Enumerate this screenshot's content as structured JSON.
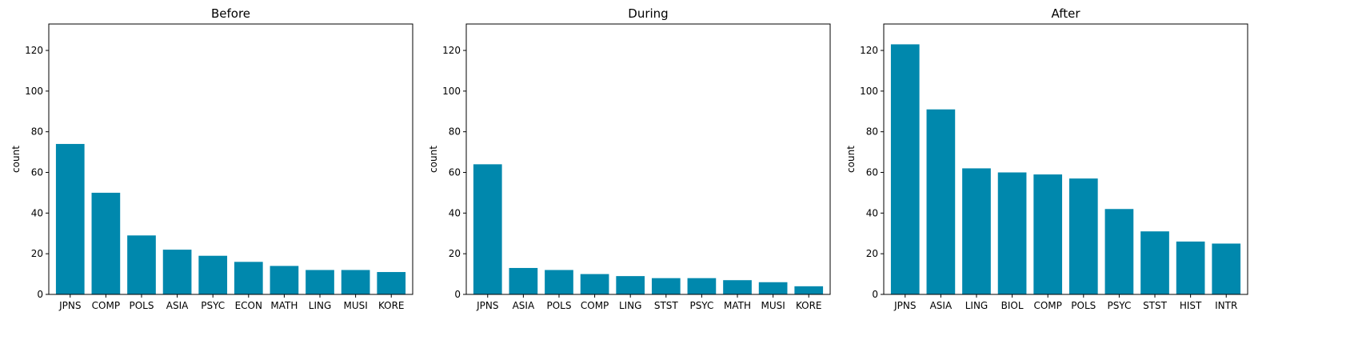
{
  "colors": {
    "bar": "#0088ad",
    "axes": "#000000",
    "background": "#ffffff"
  },
  "chart_data": [
    {
      "type": "bar",
      "title": "Before",
      "xlabel": "",
      "ylabel": "count",
      "ylim": [
        0,
        133
      ],
      "yticks": [
        0,
        20,
        40,
        60,
        80,
        100,
        120
      ],
      "grid": false,
      "categories": [
        "JPNS",
        "COMP",
        "POLS",
        "ASIA",
        "PSYC",
        "ECON",
        "MATH",
        "LING",
        "MUSI",
        "KORE"
      ],
      "values": [
        74,
        50,
        29,
        22,
        19,
        16,
        14,
        12,
        12,
        11
      ]
    },
    {
      "type": "bar",
      "title": "During",
      "xlabel": "",
      "ylabel": "count",
      "ylim": [
        0,
        133
      ],
      "yticks": [
        0,
        20,
        40,
        60,
        80,
        100,
        120
      ],
      "grid": false,
      "categories": [
        "JPNS",
        "ASIA",
        "POLS",
        "COMP",
        "LING",
        "STST",
        "PSYC",
        "MATH",
        "MUSI",
        "KORE"
      ],
      "values": [
        64,
        13,
        12,
        10,
        9,
        8,
        8,
        7,
        6,
        4
      ]
    },
    {
      "type": "bar",
      "title": "After",
      "xlabel": "",
      "ylabel": "count",
      "ylim": [
        0,
        133
      ],
      "yticks": [
        0,
        20,
        40,
        60,
        80,
        100,
        120
      ],
      "grid": false,
      "categories": [
        "JPNS",
        "ASIA",
        "LING",
        "BIOL",
        "COMP",
        "POLS",
        "PSYC",
        "STST",
        "HIST",
        "INTR"
      ],
      "values": [
        123,
        91,
        62,
        60,
        59,
        57,
        42,
        31,
        26,
        25
      ]
    }
  ]
}
